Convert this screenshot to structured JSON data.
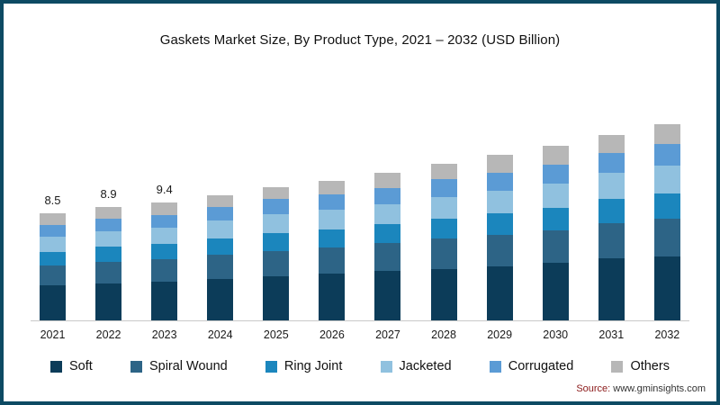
{
  "title": "Gaskets Market Size, By Product Type, 2021 – 2032 (USD Billion)",
  "frame": {
    "border_color": "#0d4a63"
  },
  "source": {
    "prefix": "Source:",
    "url": "www.gminsights.com"
  },
  "chart_data": {
    "type": "bar",
    "stacked": true,
    "title": "Gaskets Market Size, By Product Type, 2021 – 2032 (USD Billion)",
    "xlabel": "",
    "ylabel": "",
    "ylim": [
      0,
      16
    ],
    "grid": false,
    "legend_position": "bottom",
    "categories": [
      "2021",
      "2022",
      "2023",
      "2024",
      "2025",
      "2026",
      "2027",
      "2028",
      "2029",
      "2030",
      "2031",
      "2032"
    ],
    "series": [
      {
        "name": "Soft",
        "color": "#0c3c59",
        "values": [
          2.8,
          2.9,
          3.1,
          3.3,
          3.5,
          3.7,
          3.9,
          4.1,
          4.3,
          4.6,
          4.9,
          5.1
        ]
      },
      {
        "name": "Spiral Wound",
        "color": "#2d6486",
        "values": [
          1.6,
          1.7,
          1.8,
          1.9,
          2.0,
          2.1,
          2.2,
          2.4,
          2.5,
          2.6,
          2.8,
          3.0
        ]
      },
      {
        "name": "Ring Joint",
        "color": "#1b86bd",
        "values": [
          1.1,
          1.2,
          1.2,
          1.3,
          1.4,
          1.4,
          1.5,
          1.6,
          1.7,
          1.8,
          1.9,
          2.0
        ]
      },
      {
        "name": "Jacketed",
        "color": "#90c1df",
        "values": [
          1.2,
          1.2,
          1.3,
          1.4,
          1.5,
          1.6,
          1.6,
          1.7,
          1.8,
          1.9,
          2.1,
          2.2
        ]
      },
      {
        "name": "Corrugated",
        "color": "#5b9bd5",
        "values": [
          0.9,
          1.0,
          1.0,
          1.1,
          1.2,
          1.2,
          1.3,
          1.4,
          1.4,
          1.5,
          1.6,
          1.7
        ]
      },
      {
        "name": "Others",
        "color": "#b7b7b7",
        "values": [
          0.9,
          0.9,
          1.0,
          0.9,
          0.9,
          1.1,
          1.2,
          1.2,
          1.4,
          1.5,
          1.4,
          1.6
        ]
      }
    ],
    "totals": [
      8.5,
      8.9,
      9.4,
      9.9,
      10.5,
      11.1,
      11.7,
      12.4,
      13.1,
      13.9,
      14.7,
      15.6
    ],
    "data_labels": [
      "8.5",
      "8.9",
      "9.4",
      "",
      "",
      "",
      "",
      "",
      "",
      "",
      "",
      ""
    ]
  }
}
